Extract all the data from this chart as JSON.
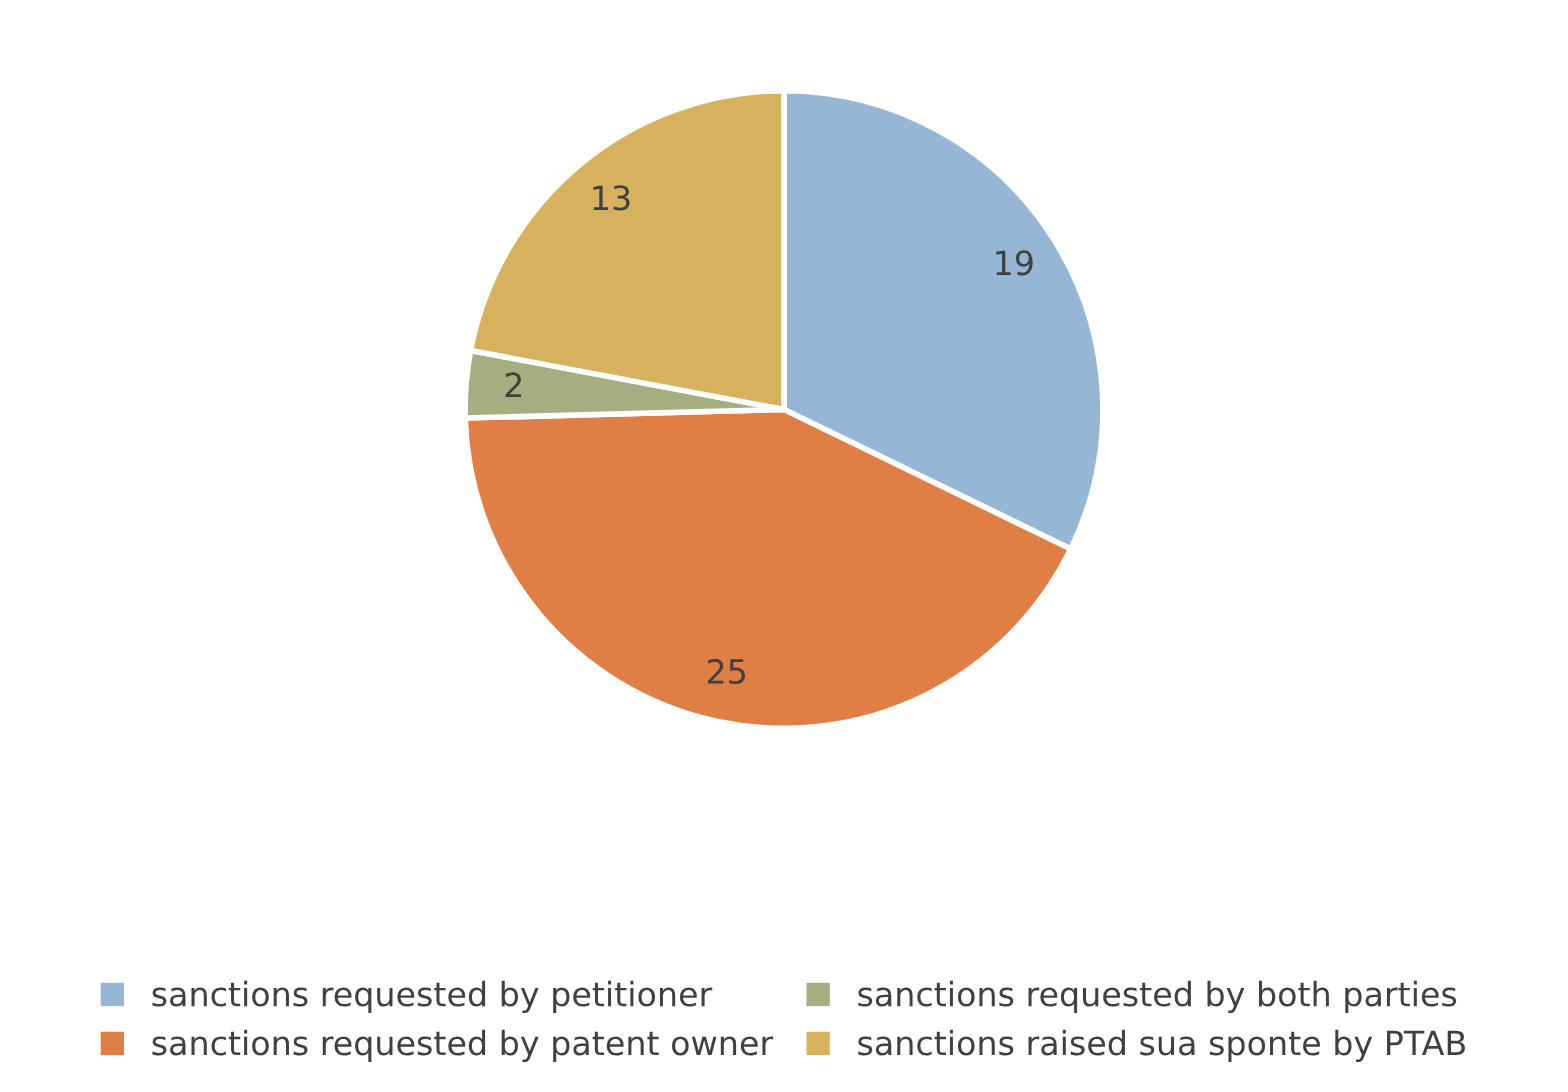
{
  "chart_data": {
    "type": "pie",
    "categories": [
      "sanctions requested by petitioner",
      "sanctions requested by patent owner",
      "sanctions requested by both parties",
      "sanctions raised sua sponte by PTAB"
    ],
    "values": [
      19,
      25,
      2,
      13
    ],
    "colors": [
      "#95b6d5",
      "#e07f45",
      "#a5ae80",
      "#d8b15e"
    ],
    "data_labels": true,
    "legend": "bottom"
  }
}
